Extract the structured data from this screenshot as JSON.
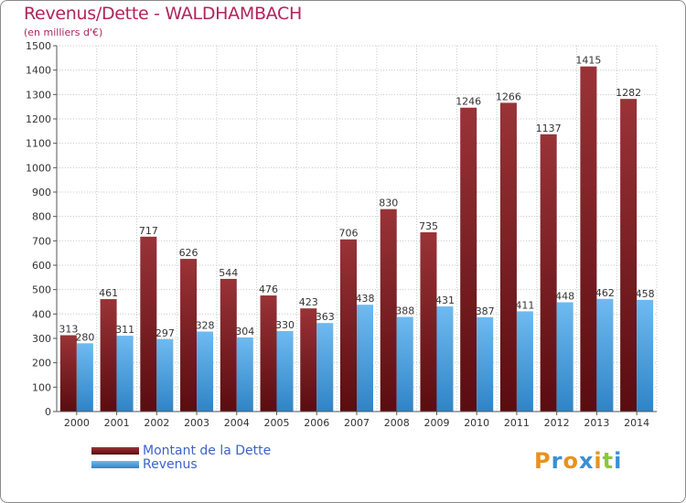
{
  "title": "Revenus/Dette - WALDHAMBACH",
  "subtitle": "(en milliers d'€)",
  "legend": {
    "debt_label": "Montant de la Dette",
    "revenue_label": "Revenus"
  },
  "logo": {
    "letters": [
      "P",
      "r",
      "o",
      "x",
      "i",
      "t",
      "i"
    ],
    "colors": [
      "#e8921e",
      "#3a8fd6",
      "#e8921e",
      "#3a8fd6",
      "#e8921e",
      "#8cc63f",
      "#3a8fd6"
    ]
  },
  "colors": {
    "debt": "#7a1a1c",
    "revenue": "#4aa3e6",
    "title": "#b0245c",
    "legend_text": "#3d63c9"
  },
  "chart_data": {
    "type": "bar",
    "title": "Revenus/Dette - WALDHAMBACH",
    "subtitle": "(en milliers d'€)",
    "categories": [
      "2000",
      "2001",
      "2002",
      "2003",
      "2004",
      "2005",
      "2006",
      "2007",
      "2008",
      "2009",
      "2010",
      "2011",
      "2012",
      "2013",
      "2014"
    ],
    "series": [
      {
        "name": "Montant de la Dette",
        "values": [
          313,
          461,
          717,
          626,
          544,
          476,
          423,
          706,
          830,
          735,
          1246,
          1266,
          1137,
          1415,
          1282
        ]
      },
      {
        "name": "Revenus",
        "values": [
          280,
          311,
          297,
          328,
          304,
          330,
          363,
          438,
          388,
          431,
          387,
          411,
          448,
          462,
          458
        ]
      }
    ],
    "ylim": [
      0,
      1500
    ],
    "yticks": [
      0,
      100,
      200,
      300,
      400,
      500,
      600,
      700,
      800,
      900,
      1000,
      1100,
      1200,
      1300,
      1400,
      1500
    ],
    "grid": true,
    "legend_position": "bottom-left"
  }
}
